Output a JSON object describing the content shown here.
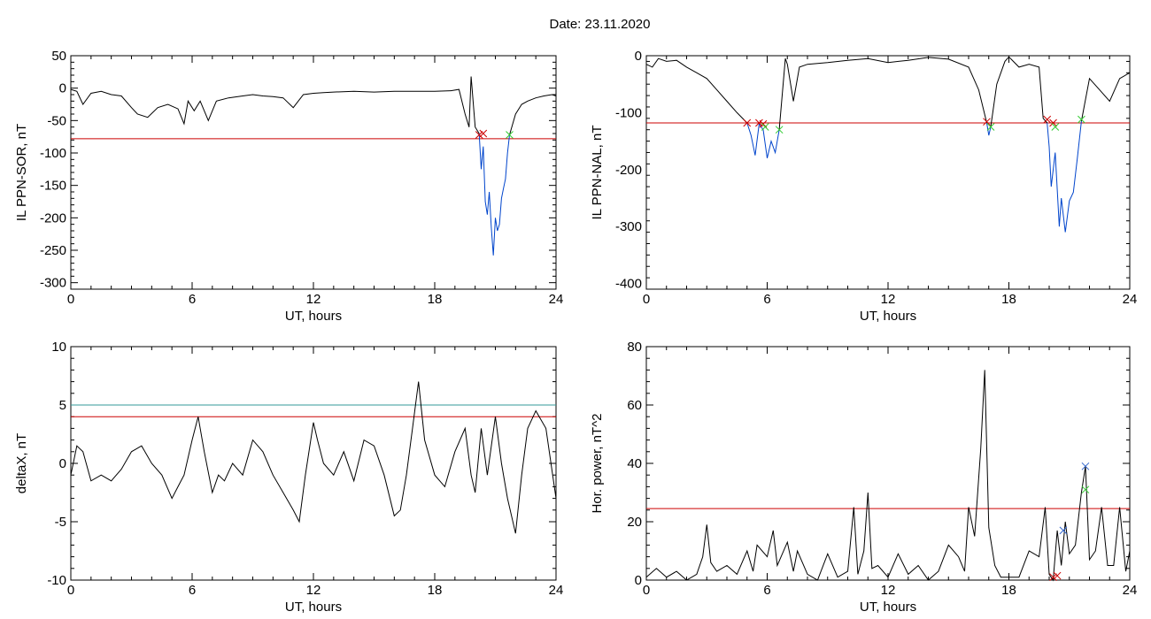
{
  "title": "Date:  23.11.2020",
  "colors": {
    "threshold_red": "#cc0000",
    "threshold_teal": "#339999",
    "onset_blue": "#0044cc",
    "marker_red": "#cc0000",
    "marker_green": "#33cc33",
    "marker_blue": "#3366cc",
    "trace": "#000000"
  },
  "chart_data": [
    {
      "type": "line",
      "xlabel": "UT, hours",
      "ylabel": "IL PPN-SOR, nT",
      "xlim": [
        0,
        24
      ],
      "ylim": [
        -310,
        50
      ],
      "xticks": [
        0,
        6,
        12,
        18,
        24
      ],
      "yticks": [
        50,
        0,
        -50,
        -100,
        -150,
        -200,
        -250,
        -300
      ],
      "thresholds": [
        {
          "value": -78,
          "color": "#cc0000"
        }
      ],
      "series": [
        {
          "color": "#000000",
          "x": [
            0,
            0.3,
            0.6,
            1.0,
            1.5,
            2.0,
            2.5,
            3.0,
            3.3,
            3.8,
            4.3,
            4.8,
            5.3,
            5.6,
            5.8,
            6.1,
            6.4,
            6.8,
            7.2,
            7.8,
            8.5,
            9.0,
            9.5,
            10.0,
            10.5,
            11.0,
            11.5,
            12.0,
            12.5,
            13.0,
            14.0,
            15.0,
            16.0,
            17.0,
            18.0,
            18.8,
            19.2,
            19.5,
            19.7,
            19.8,
            20.0,
            20.2
          ],
          "y": [
            -2,
            -5,
            -25,
            -8,
            -5,
            -10,
            -12,
            -30,
            -40,
            -45,
            -30,
            -25,
            -32,
            -55,
            -20,
            -35,
            -20,
            -50,
            -20,
            -15,
            -12,
            -10,
            -12,
            -13,
            -15,
            -30,
            -10,
            -8,
            -7,
            -6,
            -5,
            -6,
            -5,
            -5,
            -5,
            -4,
            -2,
            -40,
            -60,
            18,
            -60,
            -70
          ]
        },
        {
          "color": "#0044cc",
          "x": [
            20.2,
            20.3,
            20.4,
            20.5,
            20.6,
            20.7,
            20.8,
            20.9,
            21.0,
            21.1,
            21.2,
            21.3,
            21.4,
            21.5,
            21.6,
            21.7
          ],
          "y": [
            -70,
            -125,
            -90,
            -175,
            -195,
            -160,
            -215,
            -258,
            -200,
            -220,
            -210,
            -170,
            -155,
            -140,
            -100,
            -72
          ]
        },
        {
          "color": "#000000",
          "x": [
            21.7,
            22.0,
            22.3,
            22.6,
            23.0,
            23.4,
            23.8,
            24.0
          ],
          "y": [
            -72,
            -40,
            -25,
            -20,
            -15,
            -12,
            -10,
            -12
          ]
        }
      ],
      "markers": [
        {
          "x": 20.2,
          "y": -72,
          "color": "#cc0000"
        },
        {
          "x": 20.4,
          "y": -70,
          "color": "#cc0000"
        },
        {
          "x": 21.7,
          "y": -72,
          "color": "#33cc33"
        }
      ]
    },
    {
      "type": "line",
      "xlabel": "UT, hours",
      "ylabel": "IL PPN-NAL, nT",
      "xlim": [
        0,
        24
      ],
      "ylim": [
        -410,
        0
      ],
      "xticks": [
        0,
        6,
        12,
        18,
        24
      ],
      "yticks": [
        0,
        -100,
        -200,
        -300,
        -400
      ],
      "thresholds": [
        {
          "value": -118,
          "color": "#cc0000"
        }
      ],
      "series": [
        {
          "color": "#000000",
          "x": [
            0,
            0.3,
            0.6,
            1.0,
            1.5,
            2.0,
            2.5,
            3.0,
            3.5,
            4.0,
            4.5,
            5.0
          ],
          "y": [
            -15,
            -20,
            -5,
            -10,
            -8,
            -20,
            -30,
            -40,
            -60,
            -80,
            -100,
            -118
          ]
        },
        {
          "color": "#0044cc",
          "x": [
            5.0,
            5.2,
            5.4,
            5.6,
            5.8,
            6.0,
            6.2,
            6.4,
            6.6
          ],
          "y": [
            -118,
            -140,
            -175,
            -120,
            -130,
            -180,
            -150,
            -170,
            -130
          ]
        },
        {
          "color": "#000000",
          "x": [
            6.6,
            6.9,
            7.0,
            7.3,
            7.6,
            8.0,
            9.0,
            10.0,
            11.0,
            12.0,
            13.0,
            14.0,
            15.0,
            16.0,
            16.5,
            16.9
          ],
          "y": [
            -130,
            -5,
            -15,
            -80,
            -20,
            -15,
            -12,
            -8,
            -5,
            -12,
            -8,
            -3,
            -6,
            -20,
            -60,
            -118
          ]
        },
        {
          "color": "#0044cc",
          "x": [
            16.9,
            17.0,
            17.1
          ],
          "y": [
            -118,
            -140,
            -125
          ]
        },
        {
          "color": "#000000",
          "x": [
            17.1,
            17.4,
            17.8,
            18.0,
            18.5,
            19.0,
            19.5,
            19.7,
            19.9
          ],
          "y": [
            -125,
            -50,
            -10,
            -2,
            -20,
            -15,
            -20,
            -110,
            -118
          ]
        },
        {
          "color": "#0044cc",
          "x": [
            19.9,
            20.0,
            20.1,
            20.3,
            20.5,
            20.6,
            20.8,
            21.0,
            21.2,
            21.4,
            21.6
          ],
          "y": [
            -118,
            -160,
            -230,
            -170,
            -300,
            -250,
            -310,
            -255,
            -240,
            -180,
            -115
          ]
        },
        {
          "color": "#000000",
          "x": [
            21.6,
            22.0,
            22.5,
            23.0,
            23.5,
            24.0
          ],
          "y": [
            -115,
            -40,
            -60,
            -80,
            -40,
            -30
          ]
        }
      ],
      "markers": [
        {
          "x": 5.0,
          "y": -118,
          "color": "#cc0000"
        },
        {
          "x": 5.6,
          "y": -118,
          "color": "#cc0000"
        },
        {
          "x": 5.8,
          "y": -120,
          "color": "#cc0000"
        },
        {
          "x": 5.9,
          "y": -125,
          "color": "#33cc33"
        },
        {
          "x": 6.6,
          "y": -130,
          "color": "#33cc33"
        },
        {
          "x": 16.9,
          "y": -116,
          "color": "#cc0000"
        },
        {
          "x": 17.1,
          "y": -125,
          "color": "#33cc33"
        },
        {
          "x": 19.9,
          "y": -112,
          "color": "#cc0000"
        },
        {
          "x": 20.2,
          "y": -118,
          "color": "#cc0000"
        },
        {
          "x": 20.3,
          "y": -125,
          "color": "#33cc33"
        },
        {
          "x": 21.6,
          "y": -112,
          "color": "#33cc33"
        }
      ]
    },
    {
      "type": "line",
      "xlabel": "UT, hours",
      "ylabel": "deltaX, nT",
      "xlim": [
        0,
        24
      ],
      "ylim": [
        -10,
        10
      ],
      "xticks": [
        0,
        6,
        12,
        18,
        24
      ],
      "yticks": [
        10,
        5,
        0,
        -5,
        -10
      ],
      "thresholds": [
        {
          "value": 5,
          "color": "#339999"
        },
        {
          "value": 4,
          "color": "#cc0000"
        }
      ],
      "series": [
        {
          "color": "#000000",
          "x": [
            0,
            0.3,
            0.6,
            1.0,
            1.5,
            2.0,
            2.5,
            3.0,
            3.5,
            4.0,
            4.5,
            5.0,
            5.3,
            5.6,
            6.0,
            6.3,
            6.6,
            7.0,
            7.3,
            7.6,
            8.0,
            8.5,
            9.0,
            9.5,
            10.0,
            10.5,
            11.0,
            11.3,
            11.6,
            12.0,
            12.2,
            12.5,
            13.0,
            13.5,
            14.0,
            14.5,
            15.0,
            15.5,
            16.0,
            16.3,
            16.6,
            16.9,
            17.2,
            17.5,
            18.0,
            18.5,
            19.0,
            19.5,
            19.8,
            20.0,
            20.3,
            20.6,
            21.0,
            21.3,
            21.6,
            22.0,
            22.3,
            22.6,
            23.0,
            23.5,
            24.0
          ],
          "y": [
            -1,
            1.5,
            1,
            -1.5,
            -1,
            -1.5,
            -0.5,
            1,
            1.5,
            0,
            -1,
            -3,
            -2,
            -1,
            2,
            4,
            1,
            -2.5,
            -1,
            -1.5,
            0,
            -1,
            2,
            1,
            -1,
            -2.5,
            -4,
            -5,
            -1,
            3.5,
            2,
            0,
            -1,
            1,
            -1.5,
            2,
            1.5,
            -1,
            -4.5,
            -4,
            -1,
            3,
            7,
            2,
            -1,
            -2,
            1,
            3,
            -1,
            -2.5,
            3,
            -1,
            4,
            0,
            -3,
            -6,
            -1,
            3,
            4.5,
            3,
            -3
          ]
        }
      ],
      "markers": []
    },
    {
      "type": "line",
      "xlabel": "UT, hours",
      "ylabel": "Hor. power, nT^2",
      "xlim": [
        0,
        24
      ],
      "ylim": [
        0,
        80
      ],
      "xticks": [
        0,
        6,
        12,
        18,
        24
      ],
      "yticks": [
        80,
        60,
        40,
        20,
        0
      ],
      "thresholds": [
        {
          "value": 24.5,
          "color": "#cc0000"
        }
      ],
      "series": [
        {
          "color": "#000000",
          "x": [
            0,
            0.5,
            1.0,
            1.5,
            2.0,
            2.5,
            2.8,
            3.0,
            3.2,
            3.5,
            4.0,
            4.5,
            5.0,
            5.3,
            5.5,
            6.0,
            6.3,
            6.5,
            7.0,
            7.3,
            7.5,
            8.0,
            8.5,
            9.0,
            9.5,
            10.0,
            10.3,
            10.5,
            10.8,
            11.0,
            11.2,
            11.5,
            12.0,
            12.5,
            13.0,
            13.5,
            14.0,
            14.5,
            15.0,
            15.5,
            15.8,
            16.0,
            16.3,
            16.6,
            16.8,
            17.0,
            17.3,
            17.6,
            18.0,
            18.5,
            19.0,
            19.5,
            19.8,
            20.0,
            20.2,
            20.4,
            20.6,
            20.8,
            21.0,
            21.3,
            21.6,
            21.8,
            22.0,
            22.3,
            22.6,
            22.9,
            23.2,
            23.5,
            23.8,
            24.0
          ],
          "y": [
            1,
            4,
            1,
            3,
            0,
            2,
            8,
            19,
            6,
            3,
            5,
            2,
            10,
            3,
            12,
            8,
            17,
            5,
            13,
            3,
            10,
            2,
            0,
            9,
            1,
            3,
            25,
            2,
            10,
            30,
            4,
            5,
            1,
            9,
            2,
            5,
            0,
            3,
            12,
            8,
            3,
            25,
            15,
            45,
            72,
            18,
            5,
            1,
            1,
            1,
            10,
            8,
            25,
            2,
            0,
            17,
            5,
            20,
            9,
            12,
            30,
            39,
            7,
            10,
            25,
            5,
            5,
            25,
            3,
            10
          ]
        }
      ],
      "markers": [
        {
          "x": 20.2,
          "y": 1,
          "color": "#cc0000"
        },
        {
          "x": 20.4,
          "y": 1.5,
          "color": "#cc0000"
        },
        {
          "x": 20.7,
          "y": 17,
          "color": "#3366cc"
        },
        {
          "x": 21.8,
          "y": 39,
          "color": "#3366cc"
        },
        {
          "x": 21.8,
          "y": 31,
          "color": "#33cc33"
        }
      ]
    }
  ]
}
